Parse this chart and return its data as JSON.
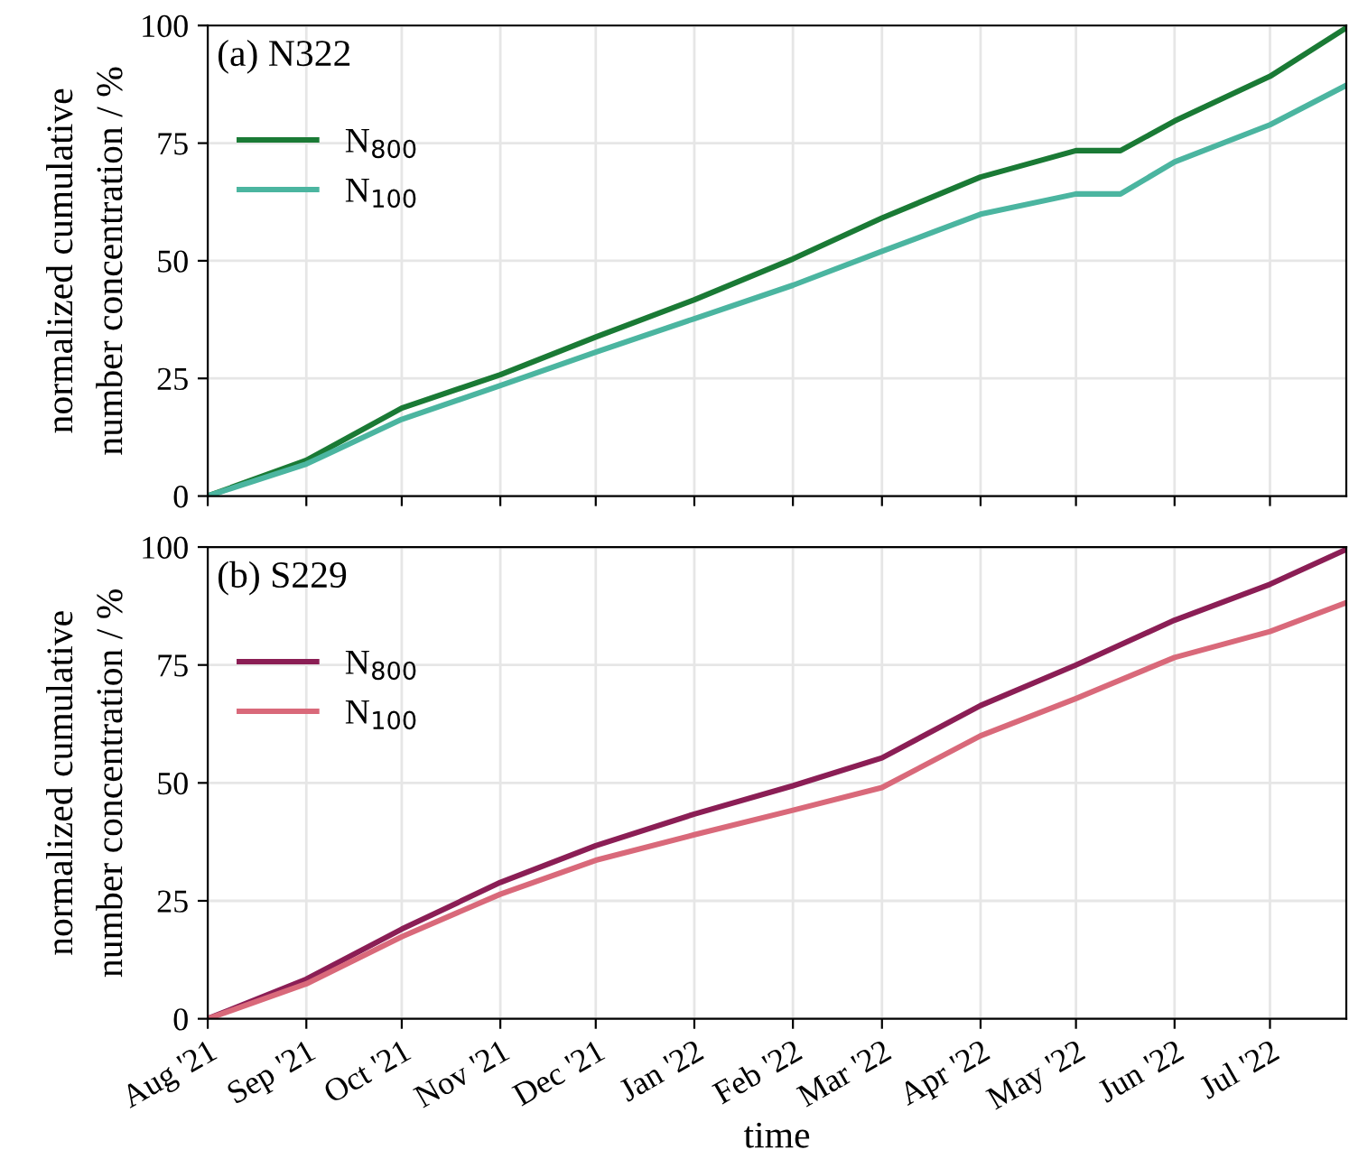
{
  "chart_data": [
    {
      "type": "line",
      "ylabel": "normalized cumulative\nnumber concentration / %",
      "annotations": [
        "(a) N322"
      ],
      "legend": "top left",
      "grid": true,
      "tick_labels": "y",
      "x": [
        "2021-08-01",
        "2021-09-01",
        "2021-10-01",
        "2021-11-01",
        "2021-12-01",
        "2022-01-01",
        "2022-02-01",
        "2022-03-01",
        "2022-04-01",
        "2022-05-01",
        "2022-05-15",
        "2022-06-01",
        "2022-07-01",
        "2022-07-25"
      ],
      "series": [
        {
          "name": "N$_{800}$",
          "color": "#1a7a35",
          "values": [
            0,
            7.6,
            18.7,
            25.8,
            33.8,
            41.7,
            50.4,
            59.1,
            67.8,
            73.4,
            73.4,
            79.7,
            89.2,
            99.5
          ]
        },
        {
          "name": "N$_{100}$",
          "color": "#4bb5a0",
          "values": [
            0,
            6.8,
            16.3,
            23.5,
            30.6,
            37.7,
            44.8,
            52,
            59.9,
            64.2,
            64.2,
            71,
            78.9,
            87.3
          ]
        }
      ],
      "xlim": [
        "2021-08-01",
        "2022-07-25"
      ],
      "ylim": [
        0,
        100
      ],
      "yticks": [
        0,
        25,
        50,
        75,
        100
      ],
      "xticks": [
        {
          "value": "2021-08-01",
          "label": null
        },
        {
          "value": "2021-09-01",
          "label": null
        },
        {
          "value": "2021-10-01",
          "label": null
        },
        {
          "value": "2021-11-01",
          "label": null
        },
        {
          "value": "2021-12-01",
          "label": null
        },
        {
          "value": "2022-01-01",
          "label": null
        },
        {
          "value": "2022-02-01",
          "label": null
        },
        {
          "value": "2022-03-01",
          "label": null
        },
        {
          "value": "2022-04-01",
          "label": null
        },
        {
          "value": "2022-05-01",
          "label": null
        },
        {
          "value": "2022-06-01",
          "label": null
        },
        {
          "value": "2022-07-01",
          "label": null
        }
      ]
    },
    {
      "type": "line",
      "xlabel": "time",
      "ylabel": "normalized cumulative\nnumber concentration / %",
      "annotations": [
        "(b) S229"
      ],
      "legend": "top left",
      "grid": true,
      "x": [
        "2021-08-01",
        "2021-09-01",
        "2021-10-01",
        "2021-11-01",
        "2021-12-01",
        "2022-01-01",
        "2022-02-01",
        "2022-03-01",
        "2022-04-01",
        "2022-05-01",
        "2022-06-01",
        "2022-07-01",
        "2022-07-25"
      ],
      "series": [
        {
          "name": "N$_{800}$",
          "color": "#8b1e55",
          "values": [
            0,
            8.4,
            19,
            28.9,
            36.7,
            43.4,
            49.4,
            55.3,
            66.4,
            75,
            84.5,
            92.1,
            99.5
          ]
        },
        {
          "name": "N$_{100}$",
          "color": "#d9697a",
          "values": [
            0,
            7.4,
            17.4,
            26.4,
            33.6,
            39,
            44.2,
            49,
            60,
            67.9,
            76.6,
            82.1,
            88.2
          ]
        }
      ],
      "xlim": [
        "2021-08-01",
        "2022-07-25"
      ],
      "ylim": [
        0,
        100
      ],
      "yticks": [
        0,
        25,
        50,
        75,
        100
      ],
      "xticks": [
        {
          "value": "2021-08-01",
          "label": "Aug '21"
        },
        {
          "value": "2021-09-01",
          "label": "Sep '21"
        },
        {
          "value": "2021-10-01",
          "label": "Oct '21"
        },
        {
          "value": "2021-11-01",
          "label": "Nov '21"
        },
        {
          "value": "2021-12-01",
          "label": "Dec '21"
        },
        {
          "value": "2022-01-01",
          "label": "Jan '22"
        },
        {
          "value": "2022-02-01",
          "label": "Feb '22"
        },
        {
          "value": "2022-03-01",
          "label": "Mar '22"
        },
        {
          "value": "2022-04-01",
          "label": "Apr '22"
        },
        {
          "value": "2022-05-01",
          "label": "May '22"
        },
        {
          "value": "2022-06-01",
          "label": "Jun '22"
        },
        {
          "value": "2022-07-01",
          "label": "Jul '22"
        }
      ]
    }
  ]
}
